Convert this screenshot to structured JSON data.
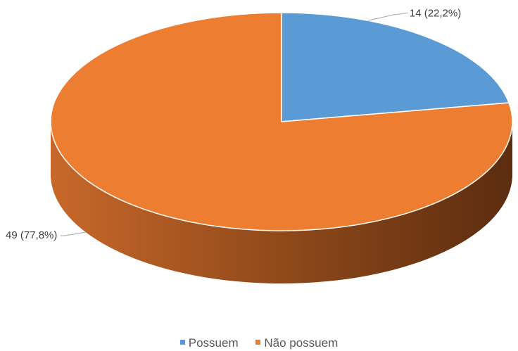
{
  "chart_data": {
    "type": "pie",
    "style": "3d",
    "title": "",
    "slices": [
      {
        "name": "Possuem",
        "value": 14,
        "percent": 22.2,
        "label": "14 (22,2%)",
        "color": "#5B9BD5",
        "side_color": "#3F75A8"
      },
      {
        "name": "Não possuem",
        "value": 49,
        "percent": 77.8,
        "label": "49 (77,8%)",
        "color": "#ED7D31",
        "side_color": "#B85F20"
      }
    ],
    "legend": {
      "position": "bottom",
      "entries": [
        "Possuem",
        "Não possuem"
      ]
    }
  }
}
